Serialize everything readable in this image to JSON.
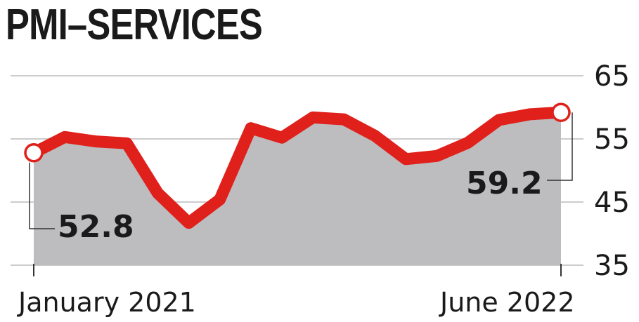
{
  "title": "PMI–SERVICES",
  "chart_data": {
    "type": "area",
    "title": "PMI–SERVICES",
    "xlabel": "",
    "ylabel": "",
    "x_tick_labels": [
      "January 2021",
      "June 2022"
    ],
    "y_ticks": [
      "65",
      "55",
      "45",
      "35"
    ],
    "ylim": [
      35,
      65
    ],
    "grid": "horizontal",
    "values": [
      52.8,
      55.3,
      54.6,
      54.3,
      46.4,
      41.7,
      45.4,
      56.7,
      55.2,
      58.4,
      58.1,
      55.5,
      51.8,
      52.3,
      54.4,
      58.0,
      58.9,
      59.2
    ],
    "annotations": [
      {
        "label": "52.8",
        "point_index": 0
      },
      {
        "label": "59.2",
        "point_index": 17
      }
    ],
    "colors": {
      "line": "#e0201b",
      "area": "#bdbdc0",
      "text": "#1a1a1a",
      "grid": "#bbbbbb"
    }
  }
}
